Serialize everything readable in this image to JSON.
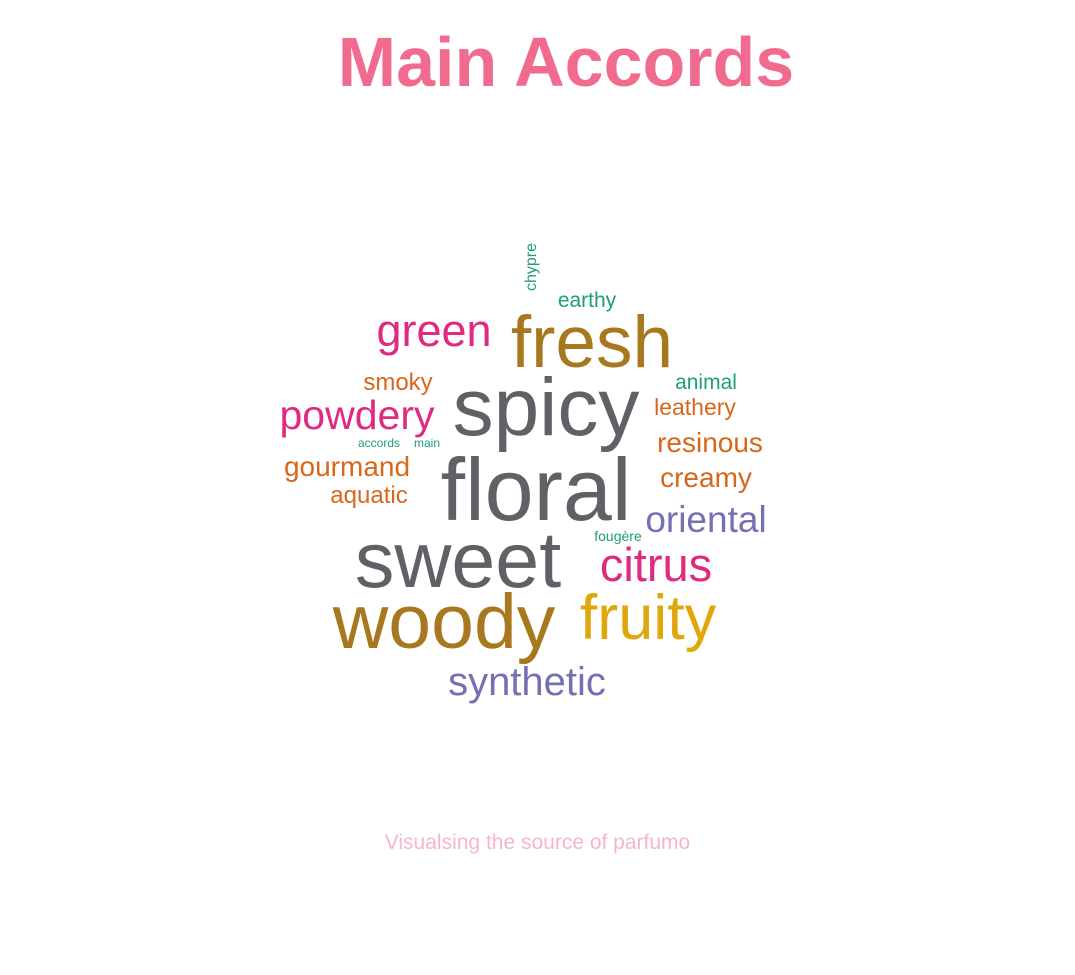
{
  "title": "Main Accords",
  "caption": "Visualsing the source of parfumo",
  "colors": {
    "title": "#f06b8e",
    "caption": "#f7b6c8",
    "grey": "#5f6166",
    "olive": "#a8781f",
    "gold": "#e0a70c",
    "magenta": "#e02a82",
    "orange": "#d9661a",
    "teal": "#1e9d78",
    "purple": "#7470b3"
  },
  "chart_data": {
    "type": "wordcloud",
    "words": [
      {
        "text": "floral",
        "weight": 100,
        "color": "#5f6166",
        "rotated": false
      },
      {
        "text": "spicy",
        "weight": 93,
        "color": "#5f6166",
        "rotated": false
      },
      {
        "text": "sweet",
        "weight": 90,
        "color": "#5f6166",
        "rotated": false
      },
      {
        "text": "woody",
        "weight": 88,
        "color": "#a8781f",
        "rotated": false
      },
      {
        "text": "fresh",
        "weight": 83,
        "color": "#a8781f",
        "rotated": false
      },
      {
        "text": "fruity",
        "weight": 72,
        "color": "#e0a70c",
        "rotated": false
      },
      {
        "text": "citrus",
        "weight": 55,
        "color": "#e02a82",
        "rotated": false
      },
      {
        "text": "green",
        "weight": 53,
        "color": "#e02a82",
        "rotated": false
      },
      {
        "text": "powdery",
        "weight": 48,
        "color": "#e02a82",
        "rotated": false
      },
      {
        "text": "synthetic",
        "weight": 47,
        "color": "#7470b3",
        "rotated": false
      },
      {
        "text": "oriental",
        "weight": 45,
        "color": "#7470b3",
        "rotated": false
      },
      {
        "text": "creamy",
        "weight": 34,
        "color": "#d9661a",
        "rotated": false
      },
      {
        "text": "resinous",
        "weight": 34,
        "color": "#d9661a",
        "rotated": false
      },
      {
        "text": "gourmand",
        "weight": 34,
        "color": "#d9661a",
        "rotated": false
      },
      {
        "text": "aquatic",
        "weight": 30,
        "color": "#d9661a",
        "rotated": false
      },
      {
        "text": "smoky",
        "weight": 29,
        "color": "#d9661a",
        "rotated": false
      },
      {
        "text": "leathery",
        "weight": 29,
        "color": "#d9661a",
        "rotated": false
      },
      {
        "text": "animal",
        "weight": 27,
        "color": "#1e9d78",
        "rotated": false
      },
      {
        "text": "earthy",
        "weight": 27,
        "color": "#1e9d78",
        "rotated": false
      },
      {
        "text": "chypre",
        "weight": 22,
        "color": "#1e9d78",
        "rotated": true
      },
      {
        "text": "fougère",
        "weight": 18,
        "color": "#1e9d78",
        "rotated": false
      },
      {
        "text": "accords",
        "weight": 16,
        "color": "#1e9d78",
        "rotated": false
      },
      {
        "text": "main",
        "weight": 16,
        "color": "#1e9d78",
        "rotated": false
      }
    ]
  }
}
